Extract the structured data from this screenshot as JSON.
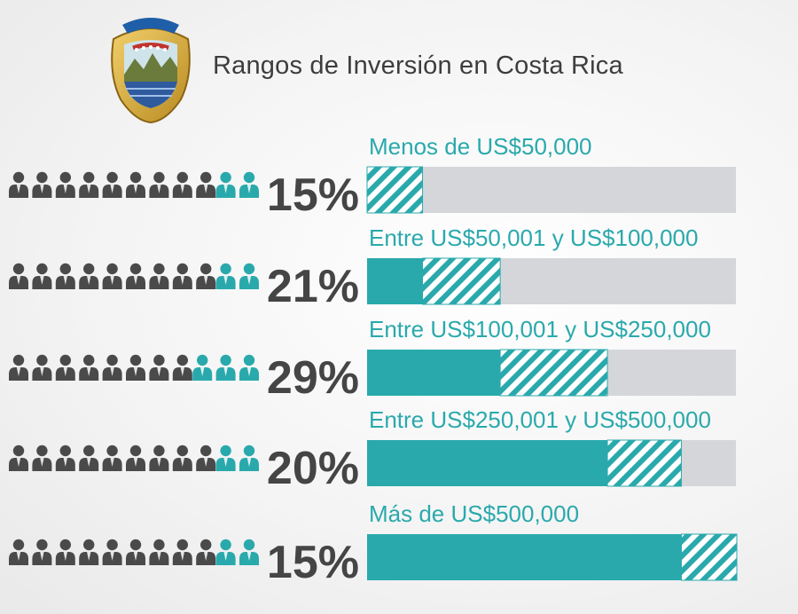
{
  "title": "Rangos de Inversión en Costa Rica",
  "seal": {
    "icon": "coat-of-arms-costa-rica"
  },
  "colors": {
    "accent": "#2aa9ac",
    "bar_track": "#d4d6da",
    "person_gray": "#4a4a4a",
    "text_dark": "#454545"
  },
  "chart_data": {
    "type": "bar",
    "orientation": "horizontal",
    "title": "Rangos de Inversión en Costa Rica",
    "cumulative_bars": true,
    "categories": [
      "Menos de US$50,000",
      "Entre US$50,001 y US$100,000",
      "Entre US$100,001 y US$250,000",
      "Entre US$250,001 y US$500,000",
      "Más de US$500,000"
    ],
    "values": [
      15,
      21,
      29,
      20,
      15
    ],
    "value_labels": [
      "15%",
      "21%",
      "29%",
      "20%",
      "15%"
    ],
    "unit": "%",
    "pictogram": {
      "icons_per_row": 11,
      "highlighted": [
        2,
        2,
        3,
        2,
        2
      ],
      "icon": "person-icon"
    }
  }
}
